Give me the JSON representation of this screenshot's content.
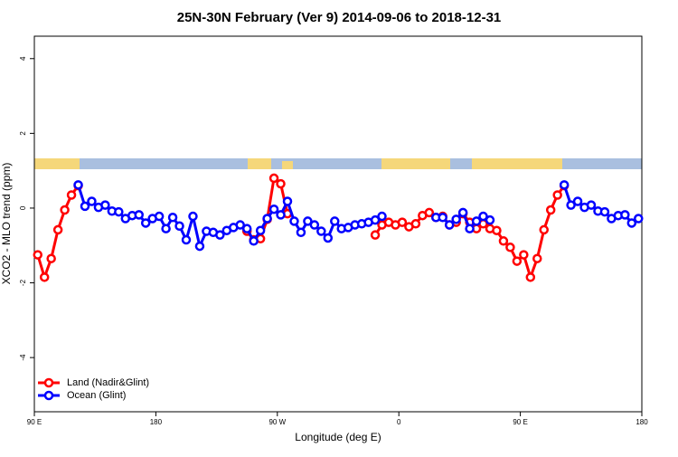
{
  "chart_data": {
    "type": "line",
    "title": "25N-30N February (Ver 9)   2014-09-06 to 2018-12-31",
    "x_label": "Longitude (deg E)",
    "y_label": "XCO2 - MLO trend (ppm)",
    "xlim": [
      90,
      540
    ],
    "ylim": [
      -5.45,
      4.6
    ],
    "xticks": [
      {
        "value": 90,
        "label": "90 E"
      },
      180,
      {
        "value": 270,
        "label": "90 W"
      },
      {
        "value": 360,
        "label": "0"
      },
      {
        "value": 450,
        "label": "90 E"
      },
      {
        "value": 540,
        "label": "180"
      }
    ],
    "yticks": [
      -4,
      -2,
      0,
      2,
      4
    ],
    "legend": "bottom-left",
    "x": [
      92.5,
      97.5,
      102.5,
      107.5,
      112.5,
      117.5,
      122.5,
      127.5,
      132.5,
      137.5,
      142.5,
      147.5,
      152.5,
      157.5,
      162.5,
      167.5,
      172.5,
      177.5,
      182.5,
      187.5,
      192.5,
      197.5,
      202.5,
      207.5,
      212.5,
      217.5,
      222.5,
      227.5,
      232.5,
      237.5,
      242.5,
      247.5,
      252.5,
      257.5,
      262.5,
      267.5,
      272.5,
      277.5,
      282.5,
      287.5,
      292.5,
      297.5,
      302.5,
      307.5,
      312.5,
      317.5,
      322.5,
      327.5,
      332.5,
      337.5,
      342.5,
      347.5,
      352.5,
      357.5,
      362.5,
      367.5,
      372.5,
      377.5,
      382.5,
      387.5,
      392.5,
      397.5,
      402.5,
      407.5,
      412.5,
      417.5,
      422.5,
      427.5,
      432.5,
      437.5,
      442.5,
      447.5,
      452.5,
      457.5,
      462.5,
      467.5,
      472.5,
      477.5,
      482.5,
      487.5,
      492.5,
      497.5,
      502.5,
      507.5,
      512.5,
      517.5,
      522.5,
      527.5,
      532.5,
      537.5
    ],
    "series": [
      {
        "name": "Land (Nadir&Glint)",
        "color": "#ff0000",
        "values": [
          -1.25,
          -1.85,
          -1.35,
          -0.58,
          -0.05,
          0.35,
          0.6,
          null,
          null,
          null,
          null,
          null,
          null,
          null,
          null,
          null,
          null,
          null,
          null,
          null,
          null,
          null,
          null,
          null,
          null,
          null,
          null,
          null,
          null,
          null,
          null,
          -0.62,
          -0.85,
          -0.82,
          -0.3,
          0.8,
          0.65,
          -0.15,
          null,
          null,
          null,
          null,
          null,
          null,
          null,
          null,
          null,
          null,
          null,
          null,
          -0.72,
          -0.45,
          -0.38,
          -0.45,
          -0.38,
          -0.5,
          -0.42,
          -0.2,
          -0.12,
          -0.25,
          -0.22,
          -0.45,
          -0.38,
          -0.15,
          -0.38,
          -0.55,
          -0.42,
          -0.55,
          -0.6,
          -0.88,
          -1.05,
          -1.42,
          -1.25,
          -1.85,
          -1.35,
          -0.58,
          -0.05,
          0.35,
          0.6,
          null,
          null,
          null,
          null,
          null,
          null,
          null,
          null,
          null,
          null,
          null
        ]
      },
      {
        "name": "Ocean (Glint)",
        "color": "#0000ff",
        "values": [
          null,
          null,
          null,
          null,
          null,
          null,
          0.62,
          0.05,
          0.18,
          0.02,
          0.08,
          -0.08,
          -0.1,
          -0.28,
          -0.2,
          -0.18,
          -0.4,
          -0.28,
          -0.22,
          -0.55,
          -0.25,
          -0.48,
          -0.85,
          -0.22,
          -1.02,
          -0.62,
          -0.65,
          -0.72,
          -0.6,
          -0.52,
          -0.45,
          -0.55,
          -0.88,
          -0.6,
          -0.28,
          -0.03,
          -0.18,
          0.18,
          -0.35,
          -0.65,
          -0.35,
          -0.45,
          -0.62,
          -0.8,
          -0.35,
          -0.55,
          -0.52,
          -0.45,
          -0.42,
          -0.38,
          -0.32,
          -0.22,
          null,
          null,
          null,
          null,
          null,
          null,
          null,
          -0.25,
          -0.25,
          -0.45,
          -0.3,
          -0.12,
          -0.55,
          -0.35,
          -0.22,
          -0.32,
          null,
          null,
          null,
          null,
          null,
          null,
          null,
          null,
          null,
          null,
          0.62,
          0.08,
          0.18,
          0.02,
          0.08,
          -0.08,
          -0.1,
          -0.28,
          -0.2,
          -0.18,
          -0.4,
          -0.28
        ]
      }
    ]
  }
}
